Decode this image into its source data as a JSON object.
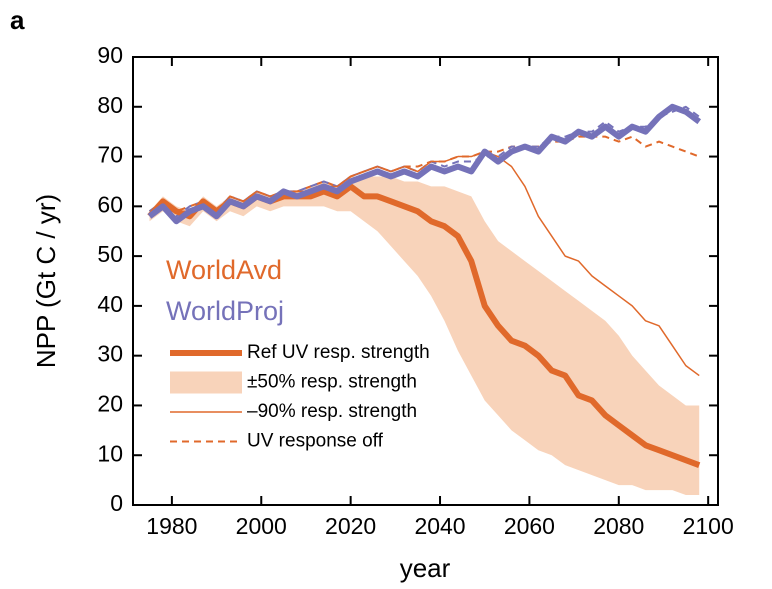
{
  "chart_data": {
    "type": "line",
    "panel_label": "a",
    "x_label": "year",
    "y_label": "NPP (Gt C / yr)",
    "xlim": [
      1971.3,
      2102.2
    ],
    "ylim": [
      0,
      90
    ],
    "xticks": [
      1980,
      2000,
      2020,
      2040,
      2060,
      2080,
      2100
    ],
    "yticks": [
      0,
      10,
      20,
      30,
      40,
      50,
      60,
      70,
      80,
      90
    ],
    "scenarios": [
      {
        "name": "WorldAvd",
        "color": "#e0692b",
        "band_color": "#f8d3ba"
      },
      {
        "name": "WorldProj",
        "color": "#7572b9"
      }
    ],
    "legend": [
      {
        "label": "Ref UV resp. strength",
        "style": "thick"
      },
      {
        "label": "±50% resp. strength",
        "style": "band"
      },
      {
        "label": "–90% resp. strength",
        "style": "thin"
      },
      {
        "label": "UV response off",
        "style": "dashed"
      }
    ],
    "x": [
      1975,
      1978,
      1981,
      1984,
      1987,
      1990,
      1993,
      1996,
      1999,
      2002,
      2005,
      2008,
      2011,
      2014,
      2017,
      2020,
      2023,
      2026,
      2029,
      2032,
      2035,
      2038,
      2041,
      2044,
      2047,
      2050,
      2053,
      2056,
      2059,
      2062,
      2065,
      2068,
      2071,
      2074,
      2077,
      2080,
      2083,
      2086,
      2089,
      2092,
      2095,
      2098
    ],
    "series": [
      {
        "scenario": 0,
        "legend_entry": 1,
        "lower": [
          57,
          59,
          57,
          56,
          59,
          57,
          59,
          58,
          60,
          59,
          60,
          60,
          60,
          60,
          59,
          59,
          57,
          55,
          52,
          49,
          46,
          42,
          37,
          31,
          26,
          21,
          18,
          15,
          13,
          11,
          10,
          8,
          7,
          6,
          5,
          4,
          4,
          3,
          3,
          3,
          2,
          2
        ],
        "upper": [
          59,
          62,
          60,
          59,
          62,
          60,
          62,
          61,
          63,
          62,
          63,
          63,
          64,
          65,
          64,
          66,
          66,
          66,
          66,
          65,
          65,
          64,
          64,
          63,
          62,
          57,
          53,
          51,
          49,
          47,
          45,
          43,
          41,
          39,
          37,
          34,
          30,
          27,
          24,
          22,
          20,
          20
        ]
      },
      {
        "scenario": 0,
        "legend_entry": 3,
        "values": [
          59,
          61,
          59,
          60,
          61,
          59,
          62,
          61,
          63,
          62,
          63,
          63,
          64,
          65,
          64,
          66,
          67,
          68,
          67,
          68,
          68,
          69,
          69,
          70,
          70,
          71,
          71,
          72,
          72,
          72,
          73,
          73,
          74,
          74,
          74,
          73,
          74,
          72,
          73,
          72,
          71,
          70
        ]
      },
      {
        "scenario": 1,
        "legend_entry": 3,
        "values": [
          59,
          61,
          58,
          60,
          61,
          59,
          62,
          61,
          63,
          62,
          63,
          63,
          64,
          65,
          64,
          66,
          67,
          68,
          67,
          68,
          67,
          69,
          68,
          69,
          69,
          70,
          70,
          72,
          72,
          72,
          74,
          74,
          75,
          75,
          77,
          75,
          76,
          76,
          78,
          79,
          80,
          78
        ]
      },
      {
        "scenario": 0,
        "legend_entry": 2,
        "values": [
          58,
          61,
          59,
          59,
          61,
          59,
          62,
          61,
          63,
          62,
          63,
          63,
          63,
          64,
          64,
          66,
          67,
          68,
          67,
          68,
          67,
          69,
          69,
          70,
          70,
          71,
          70,
          68,
          64,
          58,
          54,
          50,
          49,
          46,
          44,
          42,
          40,
          37,
          36,
          32,
          28,
          26
        ]
      },
      {
        "scenario": 0,
        "legend_entry": 0,
        "values": [
          58,
          61,
          59,
          58,
          61,
          59,
          61,
          60,
          62,
          61,
          62,
          62,
          62,
          63,
          62,
          64,
          62,
          62,
          61,
          60,
          59,
          57,
          56,
          54,
          49,
          40,
          36,
          33,
          32,
          30,
          27,
          26,
          22,
          21,
          18,
          16,
          14,
          12,
          11,
          10,
          9,
          8
        ]
      },
      {
        "scenario": 1,
        "legend_entry": 0,
        "values": [
          58,
          60,
          57,
          59,
          60,
          58,
          61,
          60,
          62,
          61,
          63,
          62,
          63,
          64,
          63,
          65,
          66,
          67,
          66,
          67,
          66,
          68,
          67,
          68,
          67,
          71,
          69,
          71,
          72,
          71,
          74,
          73,
          75,
          74,
          76,
          74,
          76,
          75,
          78,
          80,
          79,
          77
        ]
      }
    ]
  }
}
